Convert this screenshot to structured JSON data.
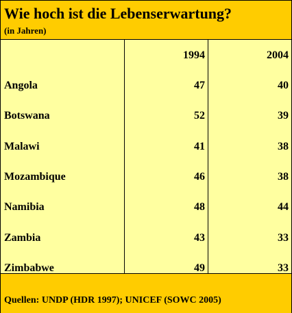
{
  "header": {
    "title": "Wie hoch ist die Lebenserwartung?",
    "subtitle": "(in Jahren)"
  },
  "chart_data": {
    "type": "table",
    "title": "Wie hoch ist die Lebenserwartung?",
    "subtitle": "(in Jahren)",
    "columns": [
      "1994",
      "2004"
    ],
    "rows": [
      {
        "label": "Angola",
        "values": [
          47,
          40
        ]
      },
      {
        "label": "Botswana",
        "values": [
          52,
          39
        ]
      },
      {
        "label": "Malawi",
        "values": [
          41,
          38
        ]
      },
      {
        "label": "Mozambique",
        "values": [
          46,
          38
        ]
      },
      {
        "label": "Namibia",
        "values": [
          48,
          44
        ]
      },
      {
        "label": "Zambia",
        "values": [
          43,
          33
        ]
      },
      {
        "label": "Zimbabwe",
        "values": [
          49,
          33
        ]
      }
    ]
  },
  "footer": {
    "source": "Quellen: UNDP (HDR 1997); UNICEF (SOWC 2005)"
  },
  "colors": {
    "header_bg": "#ffcc00",
    "body_bg": "#ffffa0",
    "border": "#000000"
  }
}
